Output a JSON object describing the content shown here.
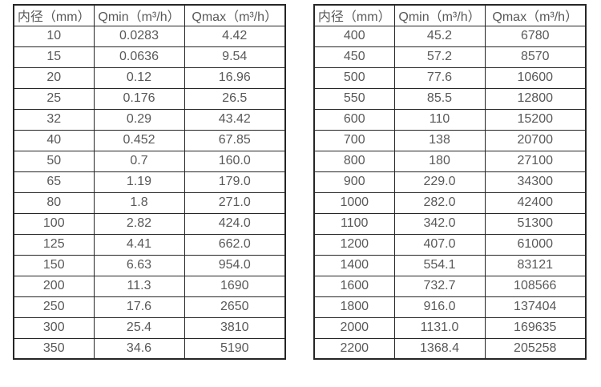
{
  "page": {
    "background": "#ffffff"
  },
  "colors": {
    "border": "#262626",
    "text": "#595959"
  },
  "column_semantic_names": [
    "header-diameter",
    "header-qmin",
    "header-qmax"
  ],
  "tables": [
    {
      "name": "small-diameter-flow-table",
      "headers": [
        "内径（mm）",
        "Qmin（m³/h）",
        "Qmax（m³/h）"
      ],
      "rows": [
        [
          "10",
          "0.0283",
          "4.42"
        ],
        [
          "15",
          "0.0636",
          "9.54"
        ],
        [
          "20",
          "0.12",
          "16.96"
        ],
        [
          "25",
          "0.176",
          "26.5"
        ],
        [
          "32",
          "0.29",
          "43.42"
        ],
        [
          "40",
          "0.452",
          "67.85"
        ],
        [
          "50",
          "0.7",
          "160.0"
        ],
        [
          "65",
          "1.19",
          "179.0"
        ],
        [
          "80",
          "1.8",
          "271.0"
        ],
        [
          "100",
          "2.82",
          "424.0"
        ],
        [
          "125",
          "4.41",
          "662.0"
        ],
        [
          "150",
          "6.63",
          "954.0"
        ],
        [
          "200",
          "11.3",
          "1690"
        ],
        [
          "250",
          "17.6",
          "2650"
        ],
        [
          "300",
          "25.4",
          "3810"
        ],
        [
          "350",
          "34.6",
          "5190"
        ]
      ]
    },
    {
      "name": "large-diameter-flow-table",
      "headers": [
        "内径（mm）",
        "Qmin（m³/h）",
        "Qmax（m³/h）"
      ],
      "rows": [
        [
          "400",
          "45.2",
          "6780"
        ],
        [
          "450",
          "57.2",
          "8570"
        ],
        [
          "500",
          "77.6",
          "10600"
        ],
        [
          "550",
          "85.5",
          "12800"
        ],
        [
          "600",
          "110",
          "15200"
        ],
        [
          "700",
          "138",
          "20700"
        ],
        [
          "800",
          "180",
          "27100"
        ],
        [
          "900",
          "229.0",
          "34300"
        ],
        [
          "1000",
          "282.0",
          "42400"
        ],
        [
          "1100",
          "342.0",
          "51300"
        ],
        [
          "1200",
          "407.0",
          "61000"
        ],
        [
          "1400",
          "554.1",
          "83121"
        ],
        [
          "1600",
          "732.7",
          "108566"
        ],
        [
          "1800",
          "916.0",
          "137404"
        ],
        [
          "2000",
          "1131.0",
          "169635"
        ],
        [
          "2200",
          "1368.4",
          "205258"
        ]
      ]
    }
  ]
}
